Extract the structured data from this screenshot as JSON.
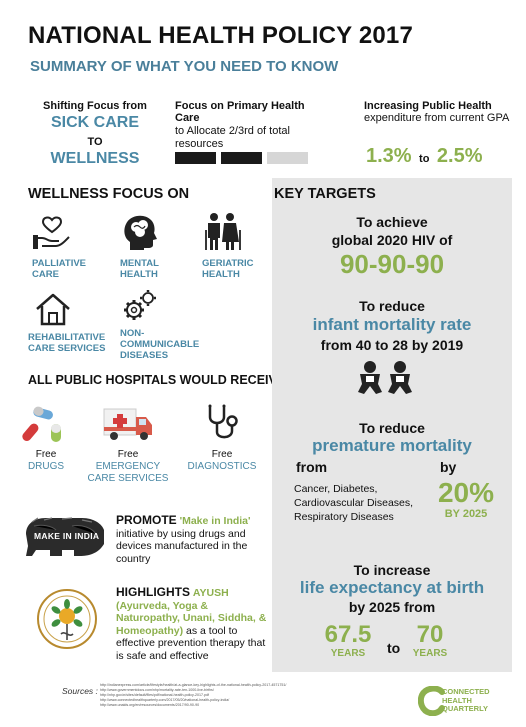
{
  "header": {
    "title": "NATIONAL HEALTH POLICY 2017",
    "subtitle": "SUMMARY OF WHAT YOU NEED TO KNOW"
  },
  "top": {
    "shift": {
      "line1": "Shifting Focus from",
      "from": "SICK CARE",
      "to": "TO",
      "target": "WELLNESS"
    },
    "primary": {
      "bold": "Focus on Primary Health Care",
      "rest": "to Allocate 2/3rd of total resources",
      "progress_filled": 2,
      "progress_total": 3
    },
    "expenditure": {
      "bold": "Increasing Public Health",
      "rest": "expenditure from current GPA",
      "from_val": "1.3%",
      "to_word": "to",
      "to_val": "2.5%"
    }
  },
  "wellness": {
    "heading": "WELLNESS FOCUS ON",
    "items": [
      {
        "label": "PALLIATIVE CARE",
        "icon": "hand-heart-icon"
      },
      {
        "label": "MENTAL HEALTH",
        "icon": "head-brain-icon"
      },
      {
        "label": "GERIATRIC HEALTH",
        "icon": "elderly-couple-icon"
      },
      {
        "label": "REHABILITATIVE CARE SERVICES",
        "icon": "house-icon"
      },
      {
        "label": "NON-COMMUNICABLE DISEASES",
        "icon": "gears-icon"
      }
    ]
  },
  "hospitals": {
    "heading": "ALL PUBLIC HOSPITALS WOULD RECEIVE",
    "items": [
      {
        "free": "Free",
        "label": "DRUGS",
        "icon": "pills-icon"
      },
      {
        "free": "Free",
        "label": "EMERGENCY CARE SERVICES",
        "icon": "ambulance-icon"
      },
      {
        "free": "Free",
        "label": "DIAGNOSTICS",
        "icon": "stethoscope-icon"
      }
    ]
  },
  "promote": {
    "bold": "PROMOTE",
    "highlight": "'Make in India'",
    "rest": "initiative by using drugs and devices manufactured in the country",
    "logo_text": "MAKE IN INDIA"
  },
  "highlights": {
    "bold": "HIGHLIGHTS",
    "highlight": "AYUSH (Ayurveda, Yoga & Naturopathy, Unani, Siddha, & Homeopathy)",
    "rest": "as a tool to effective prevention therapy that is safe and effective"
  },
  "targets": {
    "heading": "KEY TARGETS",
    "hiv": {
      "l1": "To achieve",
      "l2": "global 2020 HIV of",
      "value": "90-90-90"
    },
    "infant": {
      "l1": "To reduce",
      "l2": "infant mortality rate",
      "l3": "from 40 to 28 by 2019"
    },
    "premature": {
      "l1": "To reduce",
      "l2": "premature mortality",
      "from": "from",
      "by": "by",
      "diseases": [
        "Cancer, Diabetes,",
        "Cardiovascular Diseases,",
        "Respiratory Diseases"
      ],
      "value": "20%",
      "year": "BY 2025"
    },
    "life": {
      "l1": "To increase",
      "l2": "life expectancy at birth",
      "l3": "by 2025 from",
      "from_val": "67.5",
      "from_unit": "YEARS",
      "to": "to",
      "to_val": "70",
      "to_unit": "YEARS"
    }
  },
  "footer": {
    "sources_label": "Sources :",
    "sources": [
      "http://indianexpress.com/article/lifestyle/health/at-a-glance-key-highlights-of-the-national-health-policy-2017-4571751/",
      "http://www.governmentdocs.com/nhp/mortality-rate-ten-1000-live-births/",
      "http://nhp.gov.in/sites/default/files/pdf/national-health-policy-2017.pdf",
      "http://www.connectedhealthquarterly.com/2017/05/20/national-health-policy-india/",
      "http://www.unaids.org/en/resources/documents/2017/90-90-90"
    ],
    "brand_l1": "CONNECTED",
    "brand_l2": "HEALTH",
    "brand_l3": "QUARTERLY"
  },
  "colors": {
    "teal": "#4a88a5",
    "green": "#8db04e",
    "panel": "#e6e6e6"
  }
}
